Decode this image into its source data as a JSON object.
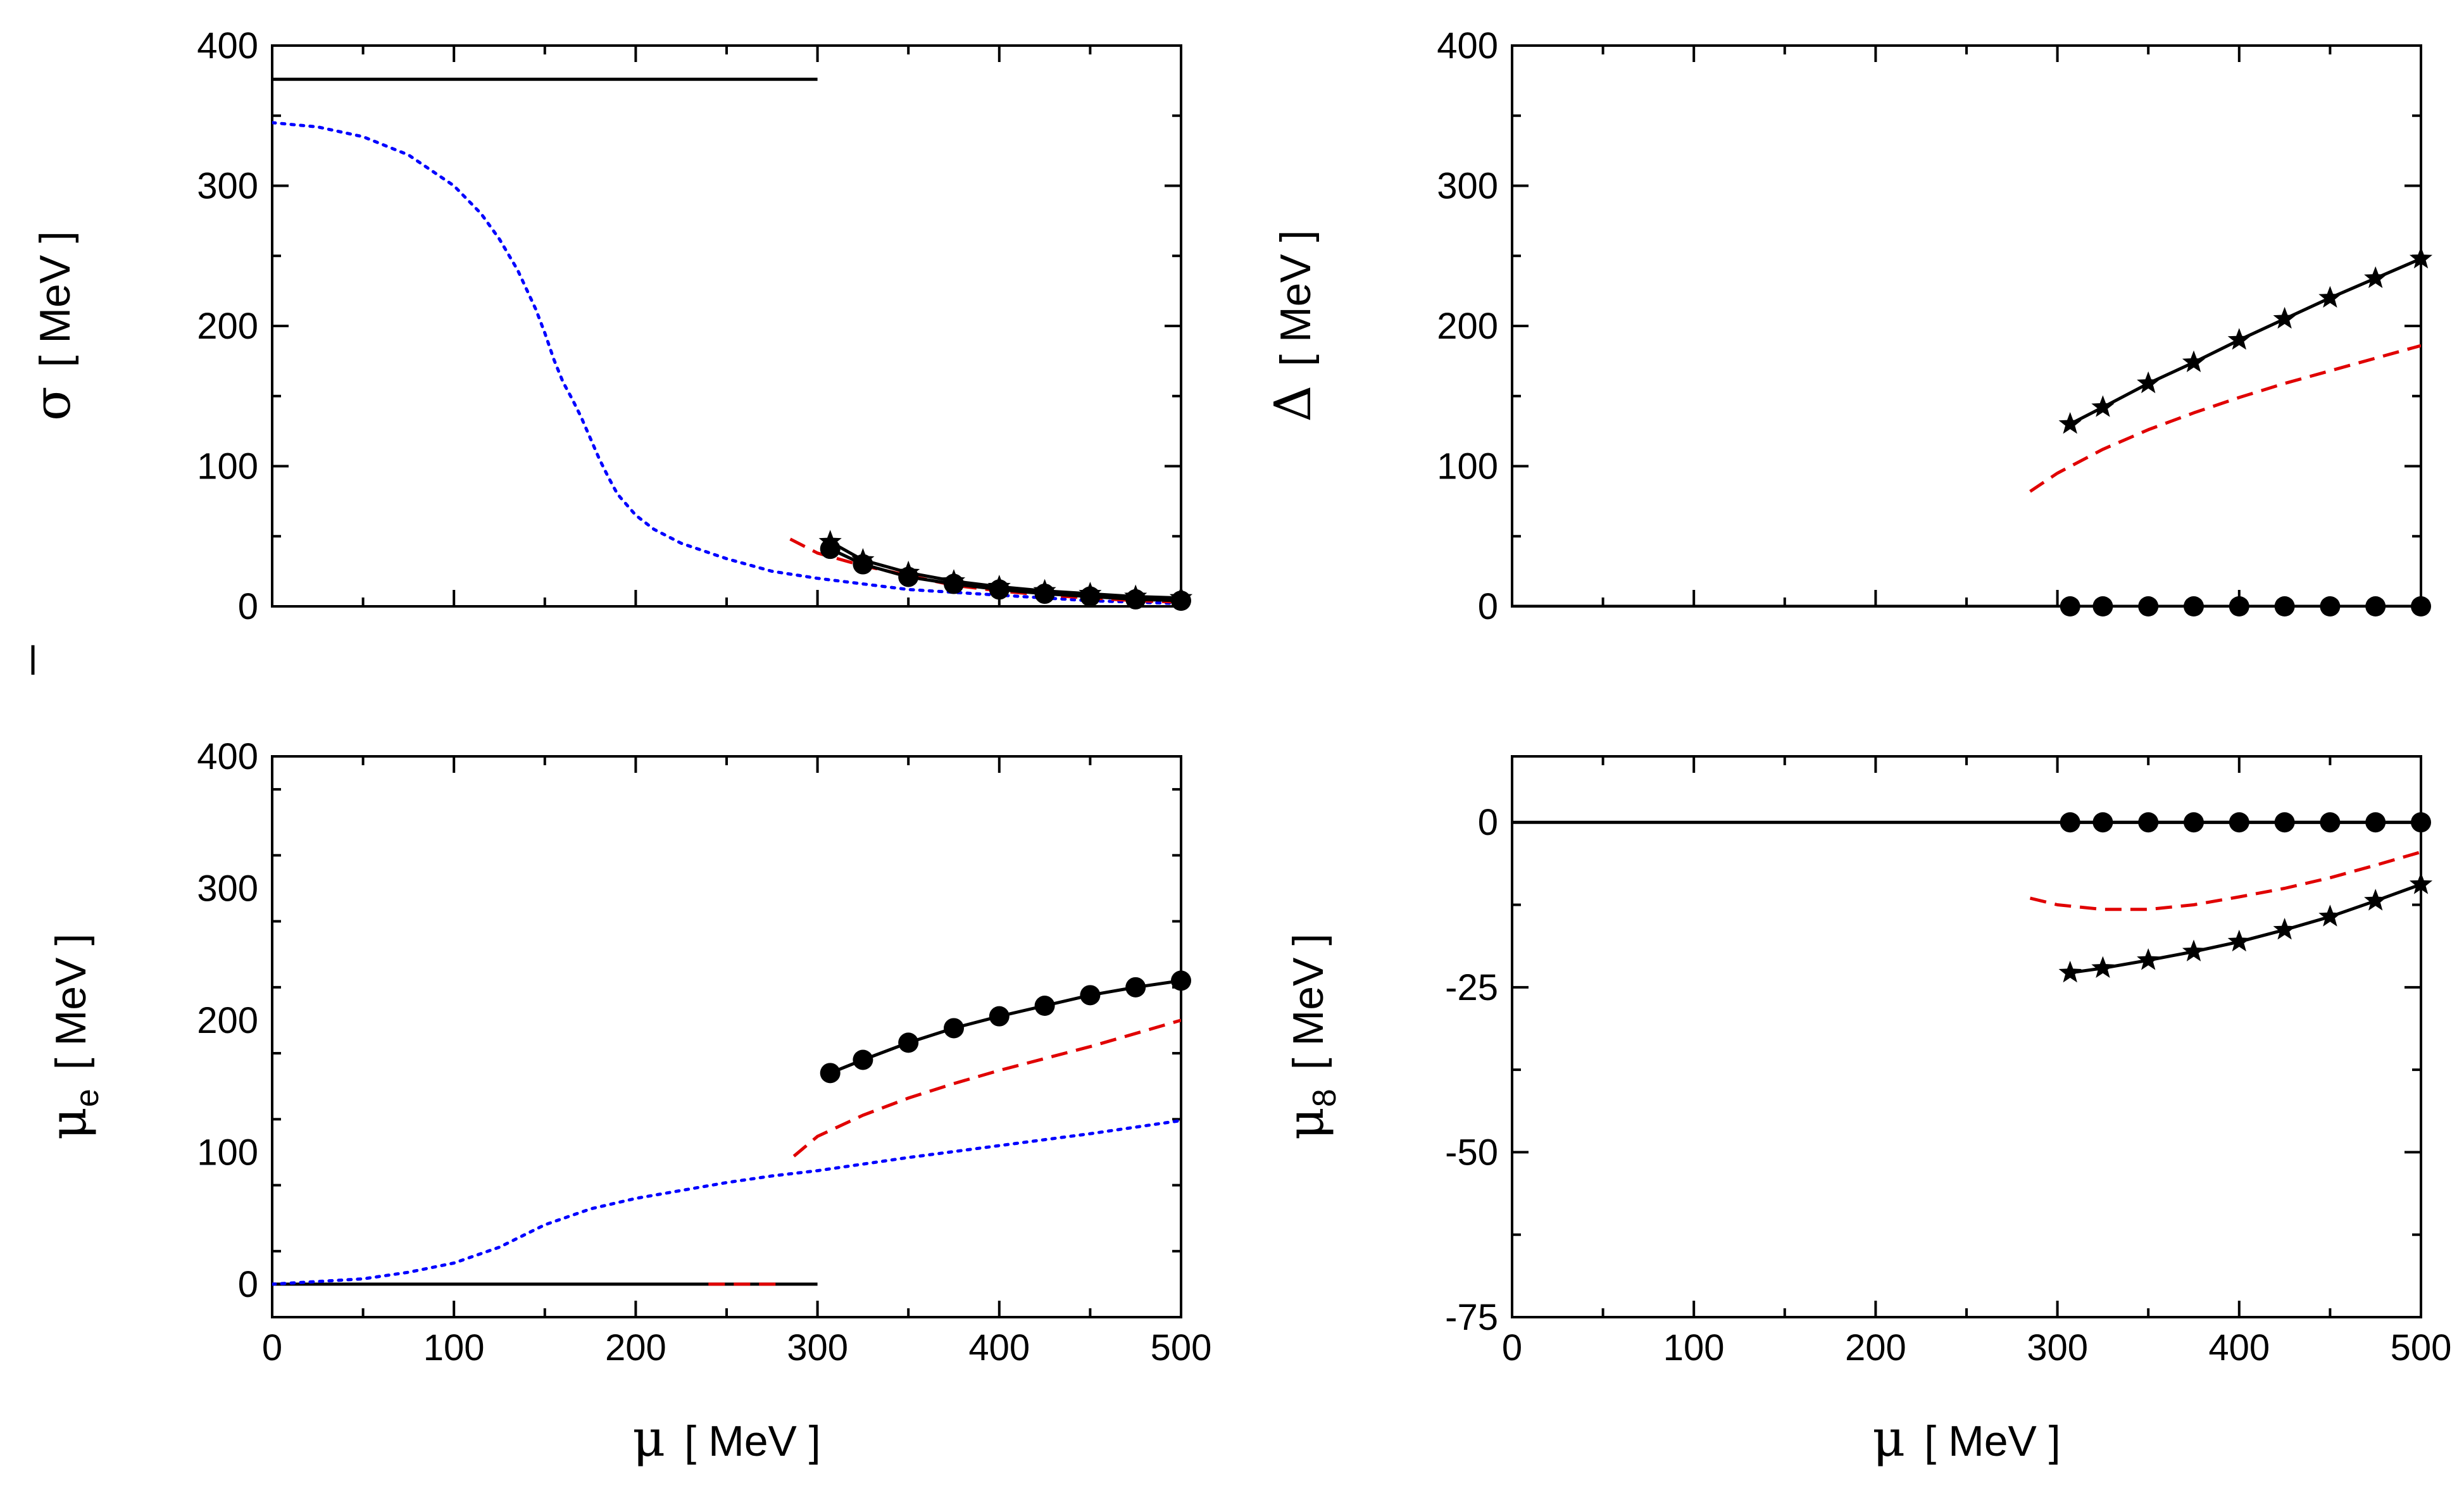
{
  "chart_data": [
    {
      "id": "sigma",
      "type": "line",
      "ylabel": {
        "symbol": "σ",
        "unit": "[ MeV ]"
      },
      "xlabel": null,
      "xlim": [
        0,
        500
      ],
      "ylim": [
        0,
        400
      ],
      "yticks": [
        0,
        100,
        200,
        300,
        400
      ],
      "ytick_labels": [
        "0",
        "100",
        "200",
        "300",
        "400"
      ],
      "xticks": [
        0,
        100,
        200,
        300,
        400,
        500
      ],
      "xtick_labels": [],
      "series": [
        {
          "name": "solid-black",
          "style": "solid",
          "color": "#000000",
          "marker": "none",
          "x": [
            0,
            300
          ],
          "y": [
            376,
            376
          ]
        },
        {
          "name": "dotted-blue",
          "style": "dotted",
          "color": "#0000ff",
          "marker": "none",
          "x": [
            0,
            25,
            50,
            75,
            100,
            115,
            125,
            135,
            145,
            150,
            155,
            160,
            165,
            170,
            175,
            180,
            185,
            190,
            200,
            210,
            225,
            250,
            275,
            300,
            350,
            400,
            450,
            500
          ],
          "y": [
            345,
            342,
            335,
            322,
            300,
            280,
            262,
            240,
            212,
            195,
            176,
            160,
            148,
            135,
            120,
            105,
            92,
            80,
            65,
            55,
            45,
            34,
            25,
            20,
            12,
            8,
            4,
            2
          ]
        },
        {
          "name": "dashed-red",
          "style": "dashed",
          "color": "#e00000",
          "marker": "none",
          "x": [
            285,
            300,
            325,
            350,
            375,
            400,
            425,
            450,
            475,
            500
          ],
          "y": [
            48,
            38,
            29,
            22,
            15,
            11,
            8,
            6,
            4,
            3
          ]
        },
        {
          "name": "stars",
          "style": "solid",
          "color": "#000000",
          "marker": "star",
          "x": [
            307,
            325,
            350,
            375,
            400,
            425,
            450,
            475,
            500
          ],
          "y": [
            46,
            33,
            24,
            18,
            14,
            11,
            9,
            7,
            6
          ]
        },
        {
          "name": "circles",
          "style": "solid",
          "color": "#000000",
          "marker": "circle",
          "x": [
            307,
            325,
            350,
            375,
            400,
            425,
            450,
            475,
            500
          ],
          "y": [
            41,
            30,
            21,
            16,
            12,
            9,
            7,
            5,
            4
          ]
        }
      ]
    },
    {
      "id": "delta",
      "type": "line",
      "ylabel": {
        "symbol": "Δ",
        "unit": "[ MeV ]"
      },
      "xlabel": null,
      "xlim": [
        0,
        500
      ],
      "ylim": [
        0,
        400
      ],
      "yticks": [
        0,
        100,
        200,
        300,
        400
      ],
      "ytick_labels": [
        "0",
        "100",
        "200",
        "300",
        "400"
      ],
      "xticks": [
        0,
        100,
        200,
        300,
        400,
        500
      ],
      "xtick_labels": [],
      "series": [
        {
          "name": "solid-black-zero",
          "style": "solid",
          "color": "#000000",
          "marker": "none",
          "x": [
            0,
            500
          ],
          "y": [
            0,
            0
          ]
        },
        {
          "name": "dashed-red",
          "style": "dashed",
          "color": "#e00000",
          "marker": "none",
          "x": [
            285,
            300,
            325,
            350,
            375,
            400,
            425,
            450,
            475,
            500
          ],
          "y": [
            82,
            95,
            112,
            126,
            138,
            149,
            159,
            168,
            177,
            186
          ]
        },
        {
          "name": "stars",
          "style": "solid",
          "color": "#000000",
          "marker": "star",
          "x": [
            307,
            325,
            350,
            375,
            400,
            425,
            450,
            475,
            500
          ],
          "y": [
            130,
            142,
            159,
            174,
            190,
            205,
            220,
            234,
            248
          ]
        },
        {
          "name": "circles",
          "style": "solid",
          "color": "#000000",
          "marker": "circle",
          "x": [
            307,
            325,
            350,
            375,
            400,
            425,
            450,
            475,
            500
          ],
          "y": [
            0,
            0,
            0,
            0,
            0,
            0,
            0,
            0,
            0
          ]
        }
      ]
    },
    {
      "id": "mu_e",
      "type": "line",
      "ylabel": {
        "symbol": "μ",
        "sub": "e",
        "unit": "[ MeV ]"
      },
      "xlabel": {
        "symbol": "μ",
        "unit": "[  MeV ]"
      },
      "xlim": [
        0,
        500
      ],
      "ylim": [
        -25,
        400
      ],
      "yticks": [
        0,
        100,
        200,
        300,
        400
      ],
      "ytick_labels": [
        "0",
        "100",
        "200",
        "300",
        "400"
      ],
      "xticks": [
        0,
        100,
        200,
        300,
        400,
        500
      ],
      "xtick_labels": [
        "0",
        "100",
        "200",
        "300",
        "400",
        "500"
      ],
      "series": [
        {
          "name": "solid-black",
          "style": "solid",
          "color": "#000000",
          "marker": "none",
          "x": [
            0,
            300
          ],
          "y": [
            0,
            0
          ]
        },
        {
          "name": "dotted-blue",
          "style": "dotted",
          "color": "#0000ff",
          "marker": "none",
          "x": [
            0,
            25,
            50,
            75,
            100,
            125,
            150,
            175,
            200,
            225,
            250,
            275,
            300,
            350,
            400,
            450,
            500
          ],
          "y": [
            0,
            2,
            4,
            9,
            16,
            28,
            45,
            57,
            65,
            71,
            77,
            82,
            86,
            96,
            105,
            114,
            124
          ]
        },
        {
          "name": "dashed-red-low",
          "style": "dashed",
          "color": "#e00000",
          "marker": "none",
          "x": [
            240,
            280
          ],
          "y": [
            0,
            0
          ]
        },
        {
          "name": "dashed-red",
          "style": "dashed",
          "color": "#e00000",
          "marker": "none",
          "x": [
            287,
            300,
            325,
            350,
            375,
            400,
            425,
            450,
            475,
            500
          ],
          "y": [
            97,
            112,
            128,
            141,
            152,
            162,
            171,
            180,
            190,
            200
          ]
        },
        {
          "name": "circles",
          "style": "solid",
          "color": "#000000",
          "marker": "circle",
          "x": [
            307,
            325,
            350,
            375,
            400,
            425,
            450,
            475,
            500
          ],
          "y": [
            160,
            170,
            183,
            194,
            203,
            211,
            219,
            225,
            230
          ]
        }
      ]
    },
    {
      "id": "mu_8",
      "type": "line",
      "ylabel": {
        "symbol": "μ",
        "sub": "8",
        "unit": "[ MeV ]"
      },
      "xlabel": {
        "symbol": "μ",
        "unit": "[ MeV ]"
      },
      "xlim": [
        0,
        500
      ],
      "ylim": [
        -75,
        10
      ],
      "yticks": [
        -75,
        -50,
        -25,
        0
      ],
      "ytick_labels": [
        "-75",
        "-50",
        "-25",
        "0"
      ],
      "xticks": [
        0,
        100,
        200,
        300,
        400,
        500
      ],
      "xtick_labels": [
        "0",
        "100",
        "200",
        "300",
        "400",
        "500"
      ],
      "series": [
        {
          "name": "solid-black-zero",
          "style": "solid",
          "color": "#000000",
          "marker": "none",
          "x": [
            0,
            500
          ],
          "y": [
            0,
            0
          ]
        },
        {
          "name": "dashed-red",
          "style": "dashed",
          "color": "#e00000",
          "marker": "none",
          "x": [
            285,
            300,
            325,
            350,
            375,
            400,
            425,
            450,
            475,
            500
          ],
          "y": [
            -11.5,
            -12.5,
            -13.2,
            -13.2,
            -12.5,
            -11.3,
            -10,
            -8.4,
            -6.5,
            -4.5
          ]
        },
        {
          "name": "stars",
          "style": "solid",
          "color": "#000000",
          "marker": "star",
          "x": [
            307,
            325,
            350,
            375,
            400,
            425,
            450,
            475,
            500
          ],
          "y": [
            -22.8,
            -22.1,
            -20.9,
            -19.6,
            -18.1,
            -16.3,
            -14.3,
            -11.9,
            -9.4
          ]
        },
        {
          "name": "circles",
          "style": "solid",
          "color": "#000000",
          "marker": "circle",
          "x": [
            307,
            325,
            350,
            375,
            400,
            425,
            450,
            475,
            500
          ],
          "y": [
            0,
            0,
            0,
            0,
            0,
            0,
            0,
            0,
            0
          ]
        }
      ]
    }
  ]
}
